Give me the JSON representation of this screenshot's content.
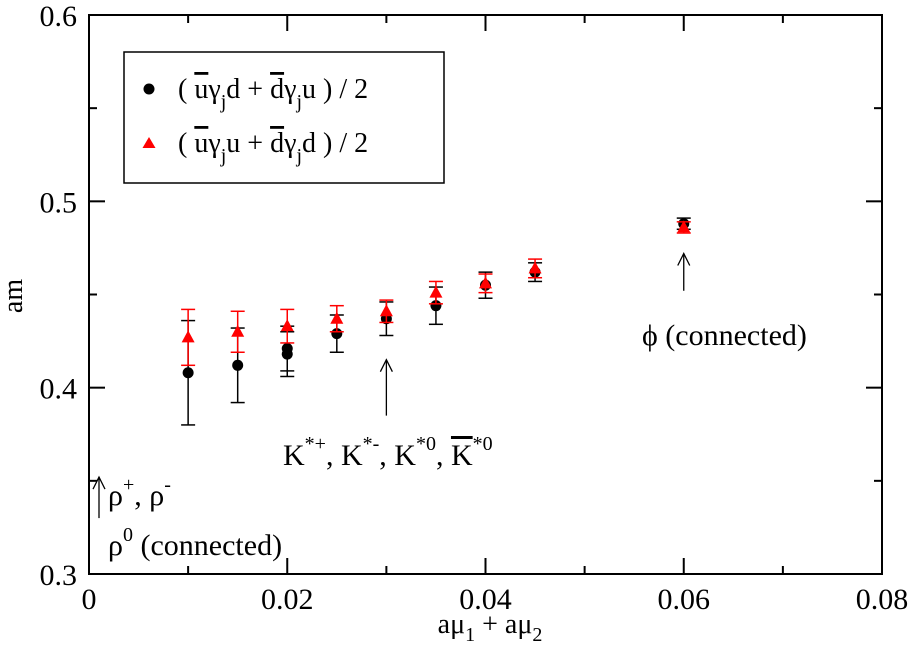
{
  "chart_data": {
    "type": "scatter",
    "xlabel": "aμ₁ + aμ₂",
    "ylabel": "am",
    "xlim": [
      0,
      0.08
    ],
    "ylim": [
      0.3,
      0.6
    ],
    "xticks": [
      0,
      0.02,
      0.04,
      0.06,
      0.08
    ],
    "xtick_labels": [
      "0",
      "0.02",
      "0.04",
      "0.06",
      "0.08"
    ],
    "yticks": [
      0.3,
      0.4,
      0.5,
      0.6
    ],
    "ytick_labels": [
      "0.3",
      "0.4",
      "0.5",
      "0.6"
    ],
    "grid": false,
    "legend_position": "top-left",
    "series": [
      {
        "name": "( ūγⱼd + d̄γⱼu ) / 2",
        "marker": "circle",
        "color": "#000000",
        "x": [
          0.01,
          0.015,
          0.02,
          0.02,
          0.025,
          0.03,
          0.035,
          0.04,
          0.045,
          0.06
        ],
        "y": [
          0.408,
          0.412,
          0.418,
          0.421,
          0.429,
          0.437,
          0.444,
          0.455,
          0.462,
          0.488
        ],
        "yerr": [
          0.028,
          0.02,
          0.012,
          0.012,
          0.01,
          0.009,
          0.01,
          0.007,
          0.005,
          0.003
        ]
      },
      {
        "name": "( ūγⱼu + d̄γⱼd ) / 2",
        "marker": "triangle",
        "color": "#ff0000",
        "x": [
          0.01,
          0.015,
          0.02,
          0.025,
          0.03,
          0.035,
          0.04,
          0.045,
          0.06
        ],
        "y": [
          0.427,
          0.43,
          0.433,
          0.437,
          0.441,
          0.451,
          0.456,
          0.464,
          0.486
        ],
        "yerr": [
          0.015,
          0.011,
          0.009,
          0.007,
          0.006,
          0.006,
          0.005,
          0.005,
          0.003
        ]
      }
    ],
    "annotations": [
      {
        "id": "rho",
        "line1": "ρ⁺, ρ⁻",
        "line2": "ρ⁰ (connected)",
        "arrow_x": 0.0,
        "arrow_y_from": 0.33,
        "arrow_y_to": 0.352
      },
      {
        "id": "kstar",
        "text": "K*+, K*-, K*0, K̄*0",
        "arrow_x": 0.03,
        "arrow_y_from": 0.385,
        "arrow_y_to": 0.415
      },
      {
        "id": "phi",
        "text": "ϕ (connected)",
        "arrow_x": 0.06,
        "arrow_y_from": 0.452,
        "arrow_y_to": 0.472
      }
    ]
  }
}
